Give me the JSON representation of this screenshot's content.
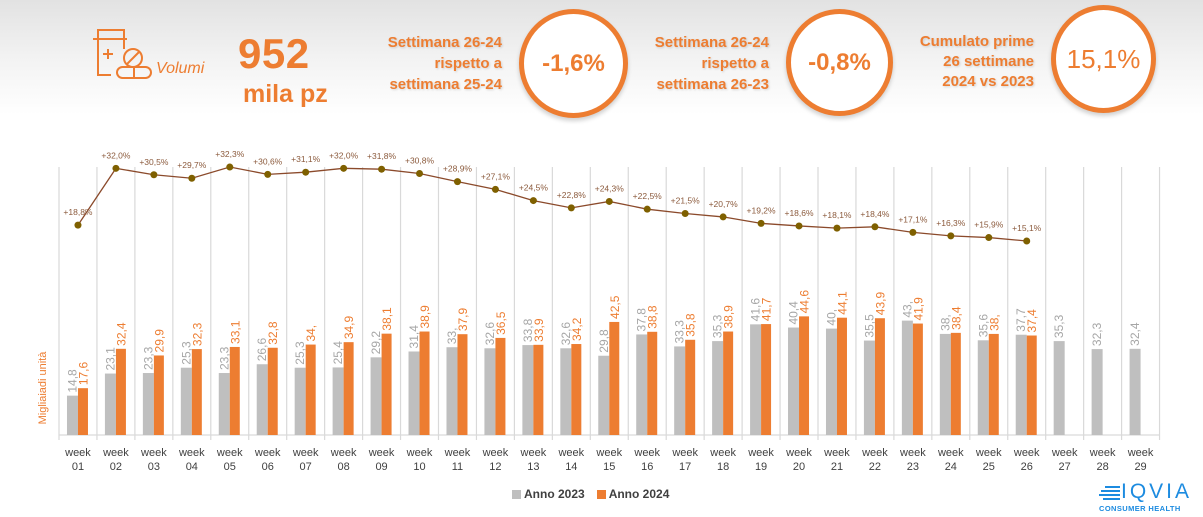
{
  "header": {
    "kpi_icon": "medicine-bottle-pills-icon",
    "kpi_label": "Volumi",
    "kpi_value": "952",
    "kpi_unit": "mila pz",
    "cards": [
      {
        "lines": [
          "Settimana 26-24",
          "rispetto a",
          "settimana 25-24"
        ],
        "value": "-1,6%"
      },
      {
        "lines": [
          "Settimana 26-24",
          "rispetto a",
          "settimana 26-23"
        ],
        "value": "-0,8%"
      },
      {
        "lines": [
          "Cumulato prime",
          "26 settimane",
          "2024 vs 2023"
        ],
        "value": "15,1%"
      }
    ]
  },
  "colors": {
    "accent": "#ED7D31",
    "series_2023": "#BFBFBF",
    "series_2024": "#ED7D31",
    "label_2023": "#A6A6A6",
    "growth_line": "#8B4A2B",
    "growth_marker": "#7F6000",
    "growth_label": "#8B5A3C",
    "grid": "#D9D9D9",
    "axis_text": "#404040",
    "logo": "#1C8BE0"
  },
  "chart_data": {
    "type": "bar",
    "title": "",
    "xlabel": "",
    "ylabel": "Migliaiadi unità",
    "categories": [
      "week 01",
      "week 02",
      "week 03",
      "week 04",
      "week 05",
      "week 06",
      "week 07",
      "week 08",
      "week 09",
      "week 10",
      "week 11",
      "week 12",
      "week 13",
      "week 14",
      "week 15",
      "week 16",
      "week 17",
      "week 18",
      "week 19",
      "week 20",
      "week 21",
      "week 22",
      "week 23",
      "week 24",
      "week 25",
      "week 26",
      "week 27",
      "week 28",
      "week 29"
    ],
    "ylim": [
      0,
      50
    ],
    "grid": "vertical category separators",
    "legend_position": "bottom",
    "series": [
      {
        "name": "Anno 2023",
        "values": [
          14.8,
          23.1,
          23.3,
          25.3,
          23.3,
          26.6,
          25.3,
          25.4,
          29.2,
          31.4,
          33.0,
          32.6,
          33.8,
          32.6,
          29.8,
          37.8,
          33.3,
          35.3,
          41.6,
          40.4,
          40.0,
          35.5,
          43.0,
          38.0,
          35.6,
          37.7,
          35.3,
          32.3,
          32.4
        ],
        "labels": [
          "14,8",
          "23,1",
          "23,3",
          "25,3",
          "23,3",
          "26,6",
          "25,3",
          "25,4",
          "29,2",
          "31,4",
          "33,",
          "32,6",
          "33,8",
          "32,6",
          "29,8",
          "37,8",
          "33,3",
          "35,3",
          "41,6",
          "40,4",
          "40,",
          "35,5",
          "43,",
          "38,",
          "35,6",
          "37,7",
          "35,3",
          "32,3",
          "32,4"
        ]
      },
      {
        "name": "Anno 2024",
        "values": [
          17.6,
          32.4,
          29.9,
          32.3,
          33.1,
          32.8,
          34.0,
          34.9,
          38.1,
          38.9,
          37.9,
          36.5,
          33.9,
          34.2,
          42.5,
          38.8,
          35.8,
          38.9,
          41.7,
          44.6,
          44.1,
          43.9,
          41.9,
          38.4,
          38.0,
          37.4,
          null,
          null,
          null
        ],
        "labels": [
          "17,6",
          "32,4",
          "29,9",
          "32,3",
          "33,1",
          "32,8",
          "34,",
          "34,9",
          "38,1",
          "38,9",
          "37,9",
          "36,5",
          "33,9",
          "34,2",
          "42,5",
          "38,8",
          "35,8",
          "38,9",
          "41,7",
          "44,6",
          "44,1",
          "43,9",
          "41,9",
          "38,4",
          "38,",
          "37,4",
          null,
          null,
          null
        ]
      }
    ],
    "growth_line": {
      "type": "line",
      "unit": "%",
      "values": [
        18.8,
        32.0,
        30.5,
        29.7,
        32.3,
        30.6,
        31.1,
        32.0,
        31.8,
        30.8,
        28.9,
        27.1,
        24.5,
        22.8,
        24.3,
        22.5,
        21.5,
        20.7,
        19.2,
        18.6,
        18.1,
        18.4,
        17.1,
        16.3,
        15.9,
        15.1
      ],
      "labels": [
        "+18,8%",
        "+32,0%",
        "+30,5%",
        "+29,7%",
        "+32,3%",
        "+30,6%",
        "+31,1%",
        "+32,0%",
        "+31,8%",
        "+30,8%",
        "+28,9%",
        "+27,1%",
        "+24,5%",
        "+22,8%",
        "+24,3%",
        "+22,5%",
        "+21,5%",
        "+20,7%",
        "+19,2%",
        "+18,6%",
        "+18,1%",
        "+18,4%",
        "+17,1%",
        "+16,3%",
        "+15,9%",
        "+15,1%"
      ]
    },
    "legend": [
      "Anno 2023",
      "Anno 2024"
    ]
  },
  "logo": {
    "icon": "iqvia-lines-icon",
    "name": "IQVIA",
    "subtitle": "CONSUMER HEALTH"
  }
}
